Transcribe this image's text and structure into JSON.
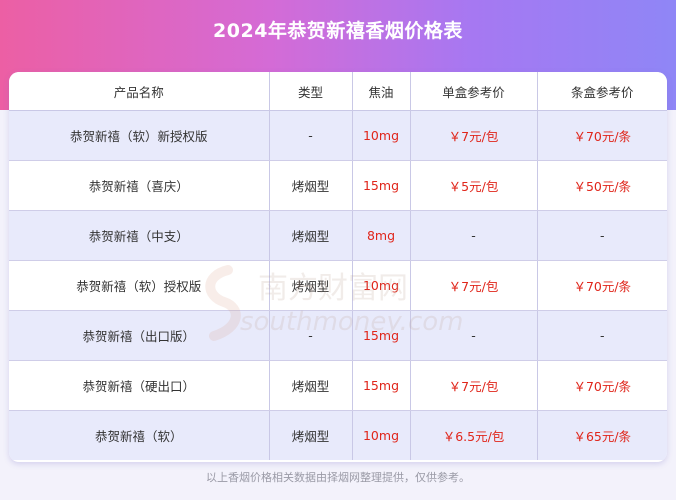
{
  "title": "2024年恭贺新禧香烟价格表",
  "columns": [
    "产品名称",
    "类型",
    "焦油",
    "单盒参考价",
    "条盒参考价"
  ],
  "rows": [
    [
      "恭贺新禧（软）新授权版",
      "-",
      "10mg",
      "￥7元/包",
      "￥70元/条"
    ],
    [
      "恭贺新禧（喜庆）",
      "烤烟型",
      "15mg",
      "￥5元/包",
      "￥50元/条"
    ],
    [
      "恭贺新禧（中支）",
      "烤烟型",
      "8mg",
      "-",
      "-"
    ],
    [
      "恭贺新禧（软）授权版",
      "烤烟型",
      "10mg",
      "￥7元/包",
      "￥70元/条"
    ],
    [
      "恭贺新禧（出口版）",
      "-",
      "15mg",
      "-",
      "-"
    ],
    [
      "恭贺新禧（硬出口）",
      "烤烟型",
      "15mg",
      "￥7元/包",
      "￥70元/条"
    ],
    [
      "恭贺新禧（软）",
      "烤烟型",
      "10mg",
      "￥6.5元/包",
      "￥65元/条"
    ]
  ],
  "watermark": {
    "line1": "南方财富网",
    "line2": "southmoney.com"
  },
  "footnote": "以上香烟价格相关数据由择烟网整理提供，仅供参考。",
  "colors": {
    "accent_red": "#e0261b",
    "row_tint": "#e8eafb",
    "header_from": "#ec5fa4",
    "header_to": "#8f86f6"
  }
}
